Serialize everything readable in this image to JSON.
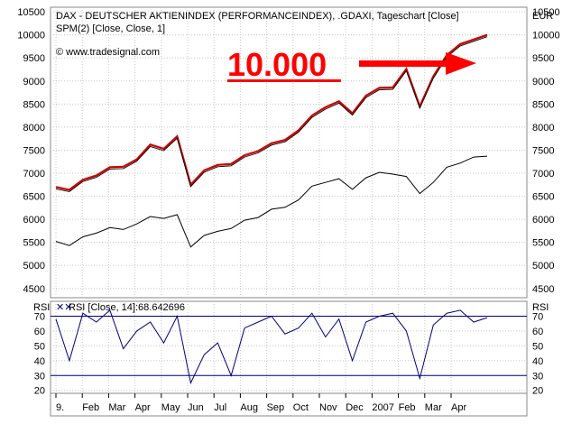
{
  "header": {
    "title": "DAX  - DEUTSCHER AKTIENINDEX (PERFORMANCEINDEX), .GDAXI, Tageschart [Close]",
    "subtitle": "SPM(2) [Close, Close, 1]",
    "copyright": "© www.tradesignal.com",
    "currency": "EUR"
  },
  "annotation": {
    "text": "10.000",
    "color": "#ff0000"
  },
  "rsi_panel": {
    "label": "RSI",
    "legend": "RSI [Close, 14]:68.642696"
  },
  "colors": {
    "price": "#000000",
    "spm": "#cc0000",
    "rsi": "#000080",
    "grid": "#c8c8c8",
    "bands": "#000080"
  },
  "chart_data": [
    {
      "type": "line",
      "title": "DAX  - DEUTSCHER AKTIENINDEX (PERFORMANCEINDEX), .GDAXI, Tageschart [Close]",
      "ylim": [
        4300,
        10600
      ],
      "y_ticks": [
        10500,
        10000,
        9500,
        9000,
        8500,
        8000,
        7500,
        7000,
        6500,
        6000,
        5500,
        5000,
        4500
      ],
      "grid": true,
      "x_labels": [
        "9.",
        "Feb",
        "Mar",
        "Apr",
        "May",
        "Jun",
        "Jul",
        "Aug",
        "Sep",
        "Oct",
        "Nov",
        "Dec",
        "2007",
        "Feb",
        "Mar",
        "Apr"
      ],
      "series": [
        {
          "name": "DAX",
          "values": [
            5520,
            5430,
            5620,
            5700,
            5820,
            5780,
            5900,
            6060,
            6020,
            6100,
            5400,
            5650,
            5740,
            5800,
            5980,
            6040,
            6220,
            6260,
            6420,
            6720,
            6800,
            6880,
            6650,
            6900,
            7020,
            6980,
            6930,
            6560,
            6800,
            7130,
            7220,
            7350,
            7370
          ]
        },
        {
          "name": "SPM(2)",
          "values": [
            6700,
            6640,
            6860,
            6950,
            7130,
            7140,
            7300,
            7620,
            7530,
            7800,
            6750,
            7060,
            7180,
            7200,
            7390,
            7480,
            7650,
            7720,
            7930,
            8250,
            8430,
            8560,
            8300,
            8680,
            8850,
            8860,
            9260,
            8450,
            9100,
            9560,
            9800,
            9900,
            10000
          ]
        }
      ]
    },
    {
      "type": "line",
      "title": "RSI [Close, 14]:68.642696",
      "ylim": [
        18,
        80
      ],
      "y_ticks": [
        70,
        60,
        50,
        40,
        30,
        20
      ],
      "bands": [
        30,
        70
      ],
      "series": [
        {
          "name": "RSI",
          "values": [
            68,
            40,
            72,
            66,
            74,
            48,
            60,
            66,
            52,
            70,
            25,
            44,
            52,
            30,
            62,
            66,
            70,
            58,
            62,
            72,
            56,
            68,
            40,
            66,
            70,
            72,
            60,
            28,
            64,
            72,
            74,
            66,
            69
          ]
        }
      ]
    }
  ]
}
